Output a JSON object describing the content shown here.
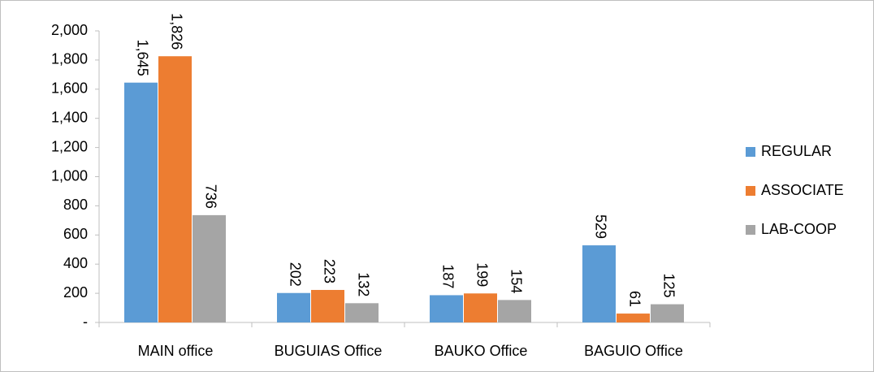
{
  "chart_data": {
    "type": "bar",
    "categories": [
      "MAIN office",
      "BUGUIAS Office",
      "BAUKO Office",
      "BAGUIO Office"
    ],
    "series": [
      {
        "name": "REGULAR",
        "color": "#5b9bd5",
        "values": [
          1645,
          202,
          187,
          529
        ],
        "value_labels": [
          "1,645",
          "202",
          "187",
          "529"
        ]
      },
      {
        "name": "ASSOCIATE",
        "color": "#ed7d31",
        "values": [
          1826,
          223,
          199,
          61
        ],
        "value_labels": [
          "1,826",
          "223",
          "199",
          "61"
        ]
      },
      {
        "name": "LAB-COOP",
        "color": "#a5a5a5",
        "values": [
          736,
          132,
          154,
          125
        ],
        "value_labels": [
          "736",
          "132",
          "154",
          "125"
        ]
      }
    ],
    "ylim": [
      0,
      2000
    ],
    "yticks": [
      {
        "value": 0,
        "label": "-"
      },
      200,
      400,
      600,
      800,
      {
        "value": 1000,
        "label": "1,000"
      },
      {
        "value": 1200,
        "label": "1,200"
      },
      {
        "value": 1400,
        "label": "1,400"
      },
      {
        "value": 1600,
        "label": "1,600"
      },
      {
        "value": 1800,
        "label": "1,800"
      },
      {
        "value": 2000,
        "label": "2,000"
      }
    ],
    "grid": false,
    "legend": "right"
  }
}
